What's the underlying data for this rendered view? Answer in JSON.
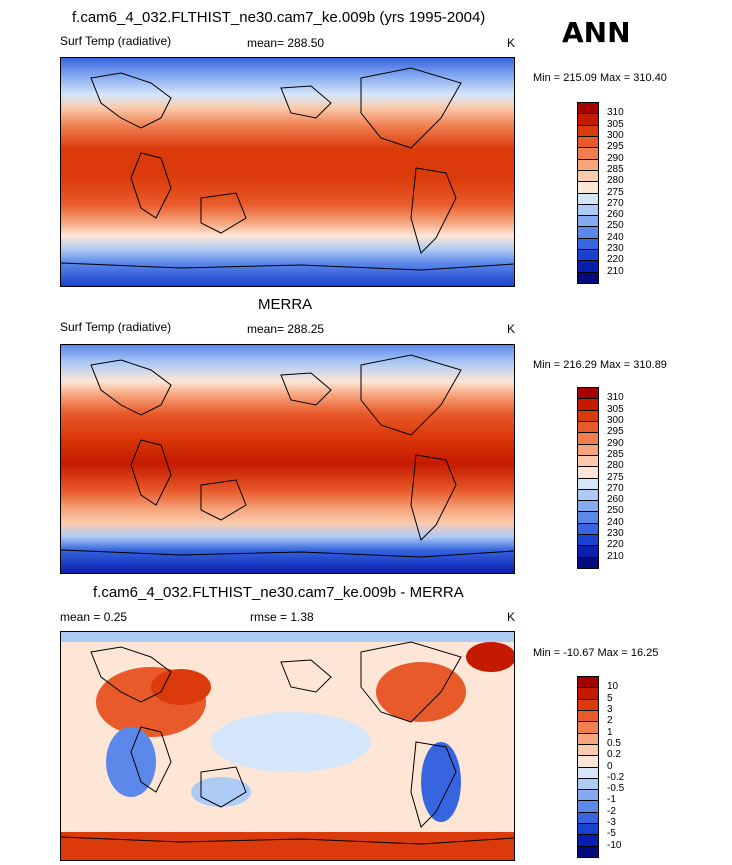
{
  "annotation": "ANN",
  "panels": [
    {
      "id": "model",
      "title": "f.cam6_4_032.FLTHIST_ne30.cam7_ke.009b (yrs 1995-2004)",
      "left_label": "Surf Temp (radiative)",
      "center_label": "mean= 288.50",
      "units": "K",
      "minmax": "Min = 215.09 Max = 310.40",
      "levels": [
        "310",
        "305",
        "300",
        "295",
        "290",
        "285",
        "280",
        "275",
        "270",
        "260",
        "250",
        "240",
        "230",
        "220",
        "210"
      ],
      "colors": [
        "#a40000",
        "#c51a00",
        "#db3a0a",
        "#e85a2a",
        "#f07e50",
        "#f6a47c",
        "#fbc9ab",
        "#fee6d7",
        "#d5e6fb",
        "#aecbf5",
        "#86aaf0",
        "#5c88ea",
        "#3765df",
        "#1a42d0",
        "#0a1fb0",
        "#060a7a"
      ]
    },
    {
      "id": "obs",
      "title": "MERRA",
      "left_label": "Surf Temp (radiative)",
      "center_label": "mean= 288.25",
      "units": "K",
      "minmax": "Min = 216.29 Max = 310.89",
      "levels": [
        "310",
        "305",
        "300",
        "295",
        "290",
        "285",
        "280",
        "275",
        "270",
        "260",
        "250",
        "240",
        "230",
        "220",
        "210"
      ],
      "colors": [
        "#a40000",
        "#c51a00",
        "#db3a0a",
        "#e85a2a",
        "#f07e50",
        "#f6a47c",
        "#fbc9ab",
        "#fee6d7",
        "#d5e6fb",
        "#aecbf5",
        "#86aaf0",
        "#5c88ea",
        "#3765df",
        "#1a42d0",
        "#0a1fb0",
        "#060a7a"
      ]
    },
    {
      "id": "diff",
      "title": "f.cam6_4_032.FLTHIST_ne30.cam7_ke.009b - MERRA",
      "left_label": "mean =   0.25",
      "center_label": "rmse =   1.38",
      "units": "K",
      "minmax": "Min = -10.67 Max =  16.25",
      "levels": [
        "10",
        "5",
        "3",
        "2",
        "1",
        "0.5",
        "0.2",
        "0",
        "-0.2",
        "-0.5",
        "-1",
        "-2",
        "-3",
        "-5",
        "-10"
      ],
      "colors": [
        "#a40000",
        "#c51a00",
        "#db3a0a",
        "#e85a2a",
        "#f07e50",
        "#f6a47c",
        "#fbc9ab",
        "#fee6d7",
        "#d5e6fb",
        "#aecbf5",
        "#86aaf0",
        "#5c88ea",
        "#3765df",
        "#1a42d0",
        "#0a1fb0",
        "#060a7a"
      ]
    }
  ],
  "chart_data": [
    {
      "type": "heatmap",
      "title": "f.cam6_4_032.FLTHIST_ne30.cam7_ke.009b (yrs 1995-2004)",
      "variable": "Surf Temp (radiative)",
      "units": "K",
      "mean": 288.5,
      "min": 215.09,
      "max": 310.4,
      "contour_levels": [
        210,
        220,
        230,
        240,
        250,
        260,
        270,
        275,
        280,
        285,
        290,
        295,
        300,
        305,
        310
      ]
    },
    {
      "type": "heatmap",
      "title": "MERRA",
      "variable": "Surf Temp (radiative)",
      "units": "K",
      "mean": 288.25,
      "min": 216.29,
      "max": 310.89,
      "contour_levels": [
        210,
        220,
        230,
        240,
        250,
        260,
        270,
        275,
        280,
        285,
        290,
        295,
        300,
        305,
        310
      ]
    },
    {
      "type": "heatmap",
      "title": "f.cam6_4_032.FLTHIST_ne30.cam7_ke.009b - MERRA",
      "units": "K",
      "mean": 0.25,
      "rmse": 1.38,
      "min": -10.67,
      "max": 16.25,
      "contour_levels": [
        -10,
        -5,
        -3,
        -2,
        -1,
        -0.5,
        -0.2,
        0,
        0.2,
        0.5,
        1,
        2,
        3,
        5,
        10
      ]
    }
  ]
}
